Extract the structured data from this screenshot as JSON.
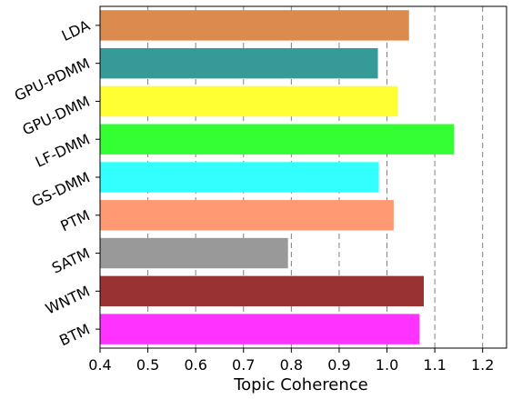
{
  "chart_data": {
    "type": "bar",
    "orientation": "horizontal",
    "xlabel": "Topic Coherence",
    "ylabel": "",
    "xlim": [
      0.4,
      1.25
    ],
    "grid": "vertical-dashed",
    "x_ticks": [
      0.4,
      0.5,
      0.6,
      0.7,
      0.8,
      0.9,
      1.0,
      1.1,
      1.2
    ],
    "x_tick_labels": [
      "0.4",
      "0.5",
      "0.6",
      "0.7",
      "0.8",
      "0.9",
      "1.0",
      "1.1",
      "1.2"
    ],
    "categories": [
      "LDA",
      "GPU-PDMM",
      "GPU-DMM",
      "LF-DMM",
      "GS-DMM",
      "PTM",
      "SATM",
      "WNTM",
      "BTM"
    ],
    "values": [
      1.046,
      0.981,
      1.022,
      1.14,
      0.983,
      1.014,
      0.793,
      1.077,
      1.068
    ],
    "colors": [
      "#dd8a4e",
      "#359a98",
      "#ffff33",
      "#33ff33",
      "#33ffff",
      "#ff9973",
      "#999999",
      "#993333",
      "#ff33ff"
    ]
  }
}
